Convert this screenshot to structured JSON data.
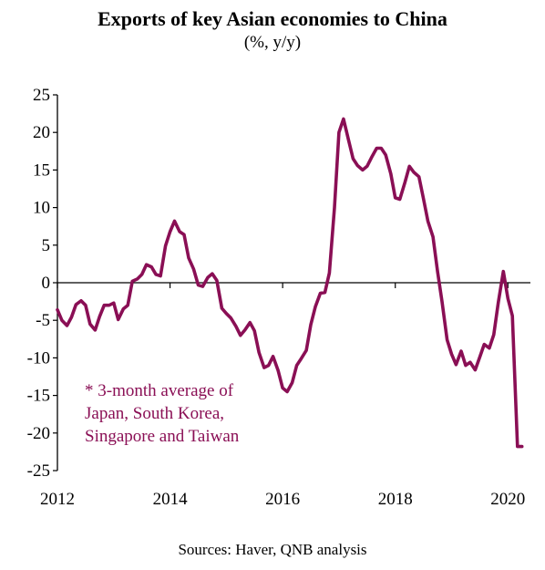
{
  "title": "Exports of key Asian economies to China",
  "subtitle": "(%, y/y)",
  "source": "Sources: Haver, QNB analysis",
  "annotation": [
    "* 3-month average of",
    "Japan, South Korea,",
    "Singapore and Taiwan"
  ],
  "colors": {
    "series": "#8a0f55",
    "axis": "#000000"
  },
  "chart_data": {
    "type": "line",
    "title": "Exports of key Asian economies to China",
    "subtitle": "(%, y/y)",
    "xlabel": "",
    "ylabel": "",
    "xlim": [
      2012,
      2020.4
    ],
    "ylim": [
      -25,
      25
    ],
    "x_ticks": [
      2012,
      2014,
      2016,
      2018,
      2020
    ],
    "x_tick_labels": [
      "2012",
      "2014",
      "2016",
      "2018",
      "2020"
    ],
    "y_ticks": [
      25,
      20,
      15,
      10,
      5,
      0,
      -5,
      -10,
      -15,
      -20,
      -25
    ],
    "y_tick_labels": [
      "25",
      "20",
      "15",
      "10",
      "5",
      "0",
      "-5",
      "-10",
      "-15",
      "-20",
      "-25"
    ],
    "grid": false,
    "series": [
      {
        "name": "",
        "x": [
          2012.0,
          2012.08,
          2012.17,
          2012.25,
          2012.33,
          2012.42,
          2012.5,
          2012.58,
          2012.67,
          2012.75,
          2012.83,
          2012.92,
          2013.0,
          2013.08,
          2013.17,
          2013.25,
          2013.33,
          2013.42,
          2013.5,
          2013.58,
          2013.67,
          2013.75,
          2013.83,
          2013.92,
          2014.0,
          2014.08,
          2014.17,
          2014.25,
          2014.33,
          2014.42,
          2014.5,
          2014.58,
          2014.67,
          2014.75,
          2014.83,
          2014.92,
          2015.0,
          2015.08,
          2015.17,
          2015.25,
          2015.33,
          2015.42,
          2015.5,
          2015.58,
          2015.67,
          2015.75,
          2015.83,
          2015.92,
          2016.0,
          2016.08,
          2016.17,
          2016.25,
          2016.33,
          2016.42,
          2016.5,
          2016.58,
          2016.67,
          2016.75,
          2016.83,
          2016.92,
          2017.0,
          2017.08,
          2017.17,
          2017.25,
          2017.33,
          2017.42,
          2017.5,
          2017.58,
          2017.67,
          2017.75,
          2017.83,
          2017.92,
          2018.0,
          2018.08,
          2018.17,
          2018.25,
          2018.33,
          2018.42,
          2018.5,
          2018.58,
          2018.67,
          2018.75,
          2018.83,
          2018.92,
          2019.0,
          2019.08,
          2019.17,
          2019.25,
          2019.33,
          2019.42,
          2019.5,
          2019.58,
          2019.67,
          2019.75,
          2019.83,
          2019.92,
          2020.0,
          2020.08,
          2020.17,
          2020.25
        ],
        "values": [
          -3.6,
          -5.0,
          -5.7,
          -4.6,
          -2.9,
          -2.4,
          -3.0,
          -5.5,
          -6.3,
          -4.5,
          -3.0,
          -3.0,
          -2.7,
          -4.9,
          -3.5,
          -3.0,
          0.2,
          0.5,
          1.1,
          2.4,
          2.1,
          1.1,
          0.9,
          4.9,
          6.8,
          8.2,
          6.8,
          6.4,
          3.3,
          1.8,
          -0.3,
          -0.5,
          0.7,
          1.2,
          0.3,
          -3.4,
          -4.1,
          -4.7,
          -5.8,
          -7.0,
          -6.3,
          -5.3,
          -6.4,
          -9.3,
          -11.3,
          -11.0,
          -9.8,
          -11.7,
          -14.0,
          -14.5,
          -13.3,
          -11.0,
          -10.1,
          -9.0,
          -5.6,
          -3.2,
          -1.4,
          -1.3,
          1.3,
          10.0,
          20.0,
          21.8,
          19.0,
          16.5,
          15.6,
          15.0,
          15.5,
          16.7,
          17.9,
          17.9,
          17.0,
          14.5,
          11.3,
          11.1,
          13.3,
          15.5,
          14.7,
          14.1,
          11.2,
          8.2,
          6.1,
          1.5,
          -2.5,
          -7.6,
          -9.5,
          -10.9,
          -9.1,
          -11.0,
          -10.6,
          -11.6,
          -9.9,
          -8.2,
          -8.7,
          -6.9,
          -2.6,
          1.5,
          -2.1,
          -4.4,
          -21.8,
          -21.8
        ]
      }
    ]
  }
}
